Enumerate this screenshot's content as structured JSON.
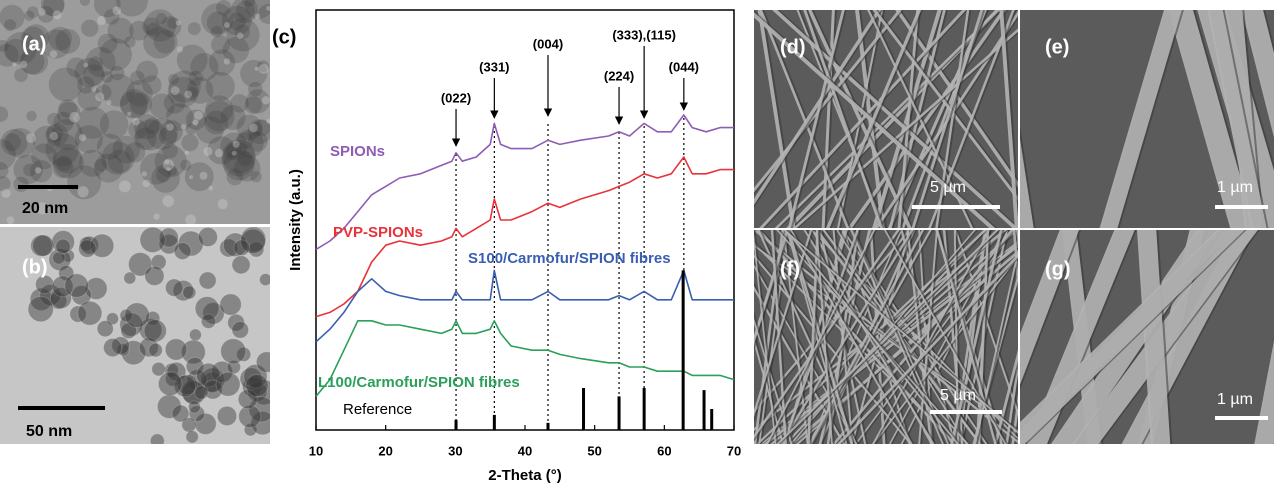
{
  "figure": {
    "panels": [
      {
        "label": "(a)",
        "scale_bar": "20 nm"
      },
      {
        "label": "(b)",
        "scale_bar": "50 nm"
      },
      {
        "label": "(d)",
        "scale_bar": "5 µm"
      },
      {
        "label": "(e)",
        "scale_bar": "1 µm"
      },
      {
        "label": "(f)",
        "scale_bar": "5 µm"
      },
      {
        "label": "(g)",
        "scale_bar": "1 µm"
      }
    ]
  },
  "chart_data": {
    "type": "line",
    "panel_label": "(c)",
    "x_label": "2-Theta (°)",
    "y_label": "Intensity (a.u.)",
    "xlim": [
      10,
      70
    ],
    "xticks": [
      10,
      20,
      30,
      40,
      50,
      60,
      70
    ],
    "ylim": [
      0,
      100
    ],
    "x": [
      10,
      12,
      14,
      16,
      18,
      20,
      22,
      25,
      28,
      29.5,
      30.1,
      31,
      33,
      35,
      35.6,
      36.5,
      38,
      41,
      43.3,
      45,
      48,
      52,
      53.5,
      55,
      57.1,
      59,
      61,
      62.8,
      64,
      66,
      68,
      70
    ],
    "series": [
      {
        "name": "SPIONs",
        "color": "#8e5db5",
        "values": [
          43,
          45,
          48,
          52,
          56,
          58,
          60,
          61,
          63,
          64,
          66,
          64,
          65,
          68,
          73,
          68,
          67,
          67,
          69,
          68,
          69,
          70,
          71,
          70,
          73,
          71,
          71,
          75,
          72,
          71,
          72,
          72
        ]
      },
      {
        "name": "PVP-SPIONs",
        "color": "#e8333a",
        "values": [
          27,
          28,
          30,
          33,
          40,
          44,
          45,
          44,
          45,
          46,
          48,
          46,
          48,
          50,
          55,
          50,
          50,
          52,
          54,
          53,
          55,
          57,
          58,
          59,
          61,
          60,
          61,
          65,
          61,
          61,
          62,
          62
        ]
      },
      {
        "name": "S100/Carmofur/SPION fibres",
        "color": "#3a5fb0",
        "values": [
          21,
          24,
          28,
          33,
          36,
          33,
          32,
          31,
          31,
          31,
          33,
          31,
          31,
          31,
          38,
          31,
          31,
          31,
          33,
          31,
          31,
          31,
          32,
          31,
          33,
          31,
          31,
          38,
          31,
          31,
          31,
          31
        ]
      },
      {
        "name": "L100/Carmofur/SPION fibres",
        "color": "#2aa05a",
        "values": [
          8,
          12,
          19,
          26,
          26,
          25,
          25,
          24,
          23,
          24,
          26,
          23,
          23,
          24,
          26,
          23,
          20,
          19,
          19,
          18,
          17,
          16,
          16,
          15,
          15,
          14,
          14,
          14,
          13,
          13,
          13,
          12
        ]
      },
      {
        "name": "Reference",
        "color": "#000000",
        "style": "stick",
        "x": [
          30.1,
          35.6,
          43.3,
          48.4,
          53.5,
          57.1,
          62.7,
          65.7,
          66.8
        ],
        "values": [
          2.4,
          3.6,
          1.7,
          10,
          8,
          10,
          38,
          9.5,
          5
        ]
      }
    ],
    "peaks": [
      {
        "label": "(022)",
        "x": 30.1
      },
      {
        "label": "(331)",
        "x": 35.6
      },
      {
        "label": "(004)",
        "x": 43.3
      },
      {
        "label": "(224)",
        "x": 53.5
      },
      {
        "label": "(333),(115)",
        "x": 57.1
      },
      {
        "label": "(044)",
        "x": 62.8
      }
    ]
  }
}
